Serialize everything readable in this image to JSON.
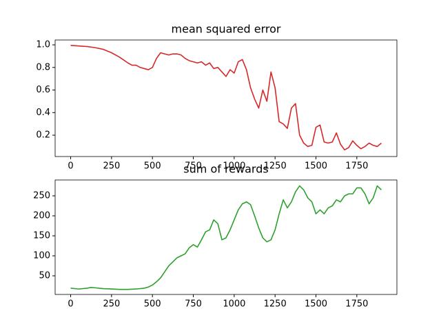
{
  "chart_data": [
    {
      "type": "line",
      "title": "mean squared error",
      "x": [
        0,
        50,
        100,
        150,
        200,
        250,
        300,
        350,
        375,
        400,
        425,
        450,
        475,
        500,
        525,
        550,
        575,
        600,
        625,
        650,
        675,
        700,
        725,
        750,
        775,
        800,
        825,
        850,
        875,
        900,
        925,
        950,
        975,
        1000,
        1025,
        1050,
        1075,
        1100,
        1125,
        1150,
        1175,
        1200,
        1225,
        1250,
        1275,
        1300,
        1325,
        1350,
        1375,
        1400,
        1425,
        1450,
        1475,
        1500,
        1525,
        1550,
        1575,
        1600,
        1625,
        1650,
        1675,
        1700,
        1725,
        1750,
        1775,
        1800,
        1825,
        1850,
        1875,
        1900
      ],
      "series": [
        {
          "color": "#d62728",
          "values": [
            0.995,
            0.99,
            0.985,
            0.975,
            0.96,
            0.93,
            0.89,
            0.84,
            0.82,
            0.82,
            0.8,
            0.79,
            0.78,
            0.8,
            0.88,
            0.93,
            0.92,
            0.91,
            0.92,
            0.92,
            0.91,
            0.88,
            0.86,
            0.85,
            0.84,
            0.85,
            0.82,
            0.84,
            0.79,
            0.8,
            0.76,
            0.72,
            0.78,
            0.75,
            0.85,
            0.87,
            0.78,
            0.62,
            0.52,
            0.44,
            0.6,
            0.5,
            0.76,
            0.62,
            0.32,
            0.3,
            0.26,
            0.44,
            0.48,
            0.2,
            0.13,
            0.1,
            0.11,
            0.27,
            0.29,
            0.14,
            0.13,
            0.14,
            0.22,
            0.12,
            0.07,
            0.09,
            0.15,
            0.11,
            0.08,
            0.1,
            0.13,
            0.11,
            0.1,
            0.13
          ]
        }
      ],
      "xlim": [
        -95,
        1995
      ],
      "xticks": [
        0,
        250,
        500,
        750,
        1000,
        1250,
        1500,
        1750
      ],
      "ylim": [
        0.011,
        1.043
      ],
      "yticks": [
        0.2,
        0.4,
        0.6,
        0.8,
        {
          "value": 1,
          "label": "1.0"
        }
      ]
    },
    {
      "type": "line",
      "title": "sum of rewards",
      "x": [
        0,
        50,
        100,
        125,
        150,
        200,
        250,
        300,
        350,
        400,
        450,
        475,
        500,
        525,
        550,
        575,
        600,
        625,
        650,
        675,
        700,
        725,
        750,
        775,
        800,
        825,
        850,
        875,
        900,
        925,
        950,
        975,
        1000,
        1025,
        1050,
        1075,
        1100,
        1125,
        1150,
        1175,
        1200,
        1225,
        1250,
        1275,
        1300,
        1325,
        1350,
        1375,
        1400,
        1425,
        1450,
        1475,
        1500,
        1525,
        1550,
        1575,
        1600,
        1625,
        1650,
        1675,
        1700,
        1725,
        1750,
        1775,
        1800,
        1825,
        1850,
        1875,
        1900
      ],
      "series": [
        {
          "color": "#2ca02c",
          "values": [
            19,
            17,
            19,
            21,
            20,
            18,
            17,
            16,
            16,
            17,
            19,
            22,
            27,
            35,
            45,
            60,
            75,
            85,
            95,
            100,
            105,
            120,
            128,
            122,
            140,
            160,
            165,
            190,
            180,
            140,
            145,
            165,
            190,
            215,
            230,
            235,
            228,
            200,
            170,
            145,
            135,
            140,
            165,
            205,
            240,
            220,
            235,
            260,
            275,
            265,
            245,
            235,
            205,
            215,
            205,
            220,
            225,
            240,
            235,
            250,
            255,
            255,
            270,
            270,
            255,
            230,
            245,
            275,
            265
          ]
        }
      ],
      "xlim": [
        -95,
        1995
      ],
      "xticks": [
        0,
        250,
        500,
        750,
        1000,
        1250,
        1500,
        1750
      ],
      "ylim": [
        3.4,
        289.7
      ],
      "yticks": [
        50,
        100,
        150,
        200,
        250
      ]
    }
  ]
}
